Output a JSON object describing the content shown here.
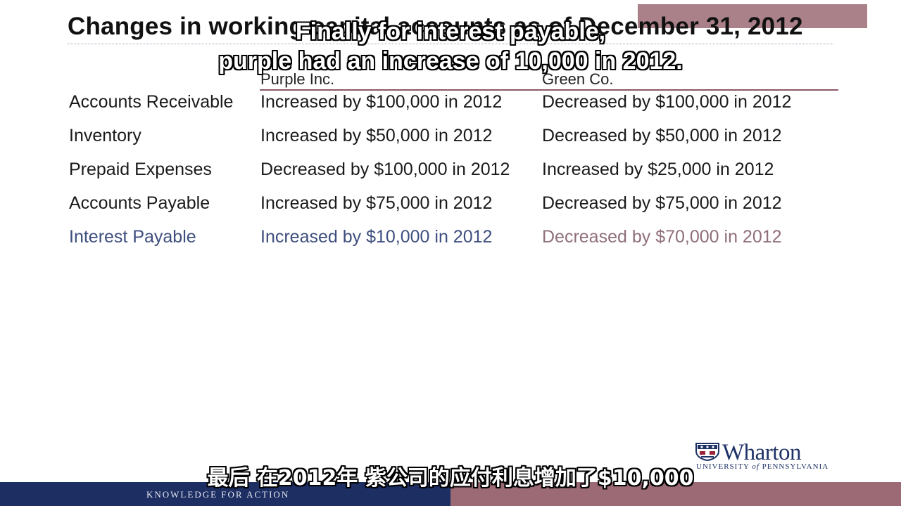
{
  "slide": {
    "title": "Changes in working capital accounts as of December 31, 2012",
    "columns": {
      "purple": "Purple Inc.",
      "green": "Green Co."
    },
    "rows": [
      {
        "label": "Accounts Receivable",
        "purple": "Increased by $100,000 in 2012",
        "green": "Decreased by $100,000 in 2012"
      },
      {
        "label": "Inventory",
        "purple": "Increased by $50,000 in 2012",
        "green": "Decreased by $50,000 in 2012"
      },
      {
        "label": "Prepaid Expenses",
        "purple": "Decreased by $100,000 in 2012",
        "green": "Increased by $25,000 in 2012"
      },
      {
        "label": "Accounts Payable",
        "purple": "Increased by $75,000 in 2012",
        "green": "Decreased by $75,000 in 2012"
      },
      {
        "label": "Interest Payable",
        "purple": "Increased by $10,000 in 2012",
        "green": "Decreased by $70,000 in 2012"
      }
    ]
  },
  "subtitles": {
    "en_line1": "Finally for interest payable,",
    "en_line2": "purple had an increase of 10,000 in 2012.",
    "zh": "最后 在2012年 紫公司的应付利息增加了$10,000"
  },
  "branding": {
    "logo_word": "Wharton",
    "logo_univ_prefix": "UNIVERSITY",
    "logo_univ_of": "of",
    "logo_univ_suffix": "PENNSYLVANIA",
    "tagline": "KNOWLEDGE FOR ACTION"
  },
  "colors": {
    "brand_blue": "#1d2e63",
    "brand_red": "#9b6a74",
    "highlight_purple": "#3e4e7e",
    "highlight_green": "#8f6f78"
  }
}
